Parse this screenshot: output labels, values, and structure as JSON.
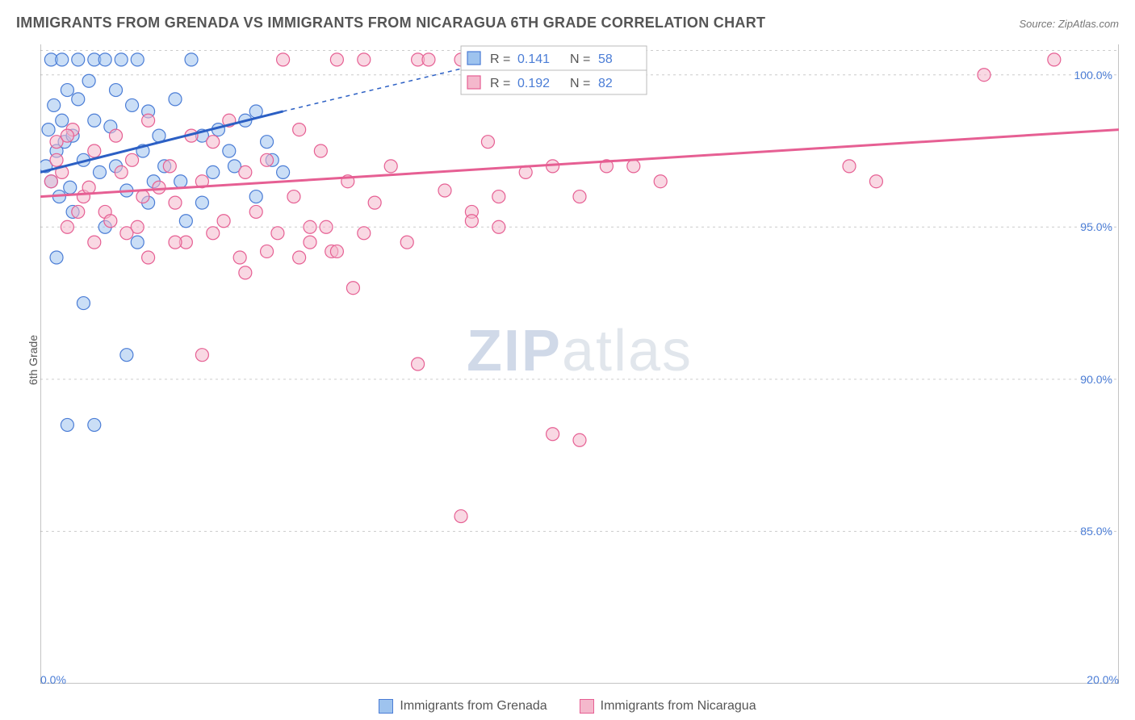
{
  "title": "IMMIGRANTS FROM GRENADA VS IMMIGRANTS FROM NICARAGUA 6TH GRADE CORRELATION CHART",
  "source": "Source: ZipAtlas.com",
  "y_axis_label": "6th Grade",
  "watermark_zip": "ZIP",
  "watermark_atlas": "atlas",
  "chart": {
    "type": "scatter",
    "background_color": "#ffffff",
    "grid_color": "#cccccc",
    "axis_color": "#888888",
    "xlim": [
      0,
      20
    ],
    "ylim": [
      80,
      101
    ],
    "x_ticks": [
      0,
      2.5,
      5,
      7.5,
      10,
      12.5,
      15,
      17.5,
      20
    ],
    "x_tick_labels_shown": {
      "0": "0.0%",
      "20": "20.0%"
    },
    "y_ticks": [
      85,
      90,
      95,
      100
    ],
    "y_tick_labels": {
      "85": "85.0%",
      "90": "90.0%",
      "95": "95.0%",
      "100": "100.0%"
    },
    "marker_radius": 8,
    "marker_opacity": 0.55,
    "trend_line_width": 3,
    "series": [
      {
        "name": "Immigrants from Grenada",
        "color_fill": "#9ec3ee",
        "color_stroke": "#4b7dd6",
        "trend_color": "#2b5fc4",
        "R": "0.141",
        "N": "58",
        "trend": {
          "x1": 0,
          "y1": 96.8,
          "x2": 4.5,
          "y2": 98.8,
          "x2_dash": 7.8,
          "y2_dash": 100.2
        },
        "points": [
          [
            0.1,
            97.0
          ],
          [
            0.15,
            98.2
          ],
          [
            0.2,
            96.5
          ],
          [
            0.25,
            99.0
          ],
          [
            0.3,
            97.5
          ],
          [
            0.35,
            96.0
          ],
          [
            0.4,
            98.5
          ],
          [
            0.45,
            97.8
          ],
          [
            0.5,
            99.5
          ],
          [
            0.55,
            96.3
          ],
          [
            0.6,
            98.0
          ],
          [
            0.7,
            100.5
          ],
          [
            0.8,
            97.2
          ],
          [
            0.9,
            99.8
          ],
          [
            1.0,
            100.5
          ],
          [
            1.1,
            96.8
          ],
          [
            1.2,
            100.5
          ],
          [
            1.3,
            98.3
          ],
          [
            1.4,
            97.0
          ],
          [
            1.5,
            100.5
          ],
          [
            1.6,
            96.2
          ],
          [
            1.7,
            99.0
          ],
          [
            1.8,
            100.5
          ],
          [
            1.9,
            97.5
          ],
          [
            2.0,
            98.8
          ],
          [
            2.1,
            96.5
          ],
          [
            2.3,
            97.0
          ],
          [
            2.5,
            99.2
          ],
          [
            2.7,
            95.2
          ],
          [
            2.8,
            100.5
          ],
          [
            3.0,
            98.0
          ],
          [
            3.2,
            96.8
          ],
          [
            3.5,
            97.5
          ],
          [
            3.8,
            98.5
          ],
          [
            4.0,
            96.0
          ],
          [
            4.2,
            97.8
          ],
          [
            0.5,
            88.5
          ],
          [
            1.0,
            88.5
          ],
          [
            0.8,
            92.5
          ],
          [
            1.6,
            90.8
          ],
          [
            0.3,
            94.0
          ],
          [
            0.6,
            95.5
          ],
          [
            1.2,
            95.0
          ],
          [
            1.8,
            94.5
          ],
          [
            2.0,
            95.8
          ],
          [
            0.2,
            100.5
          ],
          [
            0.4,
            100.5
          ],
          [
            0.7,
            99.2
          ],
          [
            1.0,
            98.5
          ],
          [
            1.4,
            99.5
          ],
          [
            2.2,
            98.0
          ],
          [
            2.6,
            96.5
          ],
          [
            3.0,
            95.8
          ],
          [
            3.3,
            98.2
          ],
          [
            3.6,
            97.0
          ],
          [
            4.0,
            98.8
          ],
          [
            4.3,
            97.2
          ],
          [
            4.5,
            96.8
          ]
        ]
      },
      {
        "name": "Immigrants from Nicaragua",
        "color_fill": "#f4b8cc",
        "color_stroke": "#e65f93",
        "trend_color": "#e65f93",
        "R": "0.192",
        "N": "82",
        "trend": {
          "x1": 0,
          "y1": 96.0,
          "x2": 20,
          "y2": 98.2
        },
        "points": [
          [
            0.2,
            96.5
          ],
          [
            0.3,
            97.8
          ],
          [
            0.5,
            95.0
          ],
          [
            0.6,
            98.2
          ],
          [
            0.8,
            96.0
          ],
          [
            1.0,
            97.5
          ],
          [
            1.2,
            95.5
          ],
          [
            1.4,
            98.0
          ],
          [
            1.5,
            96.8
          ],
          [
            1.7,
            97.2
          ],
          [
            1.8,
            95.0
          ],
          [
            2.0,
            98.5
          ],
          [
            2.2,
            96.3
          ],
          [
            2.4,
            97.0
          ],
          [
            2.5,
            95.8
          ],
          [
            2.7,
            94.5
          ],
          [
            2.8,
            98.0
          ],
          [
            3.0,
            96.5
          ],
          [
            3.2,
            97.8
          ],
          [
            3.4,
            95.2
          ],
          [
            3.5,
            98.5
          ],
          [
            3.7,
            94.0
          ],
          [
            3.8,
            96.8
          ],
          [
            4.0,
            95.5
          ],
          [
            4.2,
            97.2
          ],
          [
            4.4,
            94.8
          ],
          [
            4.5,
            100.5
          ],
          [
            4.7,
            96.0
          ],
          [
            4.8,
            98.2
          ],
          [
            5.0,
            95.0
          ],
          [
            5.2,
            97.5
          ],
          [
            5.4,
            94.2
          ],
          [
            5.5,
            100.5
          ],
          [
            5.7,
            96.5
          ],
          [
            5.8,
            93.0
          ],
          [
            6.0,
            100.5
          ],
          [
            6.2,
            95.8
          ],
          [
            6.5,
            97.0
          ],
          [
            6.8,
            94.5
          ],
          [
            7.0,
            100.5
          ],
          [
            7.2,
            100.5
          ],
          [
            7.5,
            96.2
          ],
          [
            7.8,
            100.5
          ],
          [
            8.0,
            95.5
          ],
          [
            8.3,
            97.8
          ],
          [
            8.5,
            95.0
          ],
          [
            9.0,
            96.8
          ],
          [
            9.5,
            97.0
          ],
          [
            10.0,
            96.0
          ],
          [
            10.5,
            97.0
          ],
          [
            11.0,
            97.0
          ],
          [
            11.5,
            96.5
          ],
          [
            15.0,
            97.0
          ],
          [
            15.5,
            96.5
          ],
          [
            17.5,
            100.0
          ],
          [
            18.8,
            100.5
          ],
          [
            2.0,
            94.0
          ],
          [
            2.5,
            94.5
          ],
          [
            3.0,
            90.8
          ],
          [
            3.2,
            94.8
          ],
          [
            3.8,
            93.5
          ],
          [
            4.2,
            94.2
          ],
          [
            4.8,
            94.0
          ],
          [
            5.0,
            94.5
          ],
          [
            5.3,
            95.0
          ],
          [
            5.5,
            94.2
          ],
          [
            6.0,
            94.8
          ],
          [
            7.0,
            90.5
          ],
          [
            7.8,
            85.5
          ],
          [
            8.0,
            95.2
          ],
          [
            8.5,
            96.0
          ],
          [
            9.5,
            88.2
          ],
          [
            10.0,
            88.0
          ],
          [
            1.0,
            94.5
          ],
          [
            1.3,
            95.2
          ],
          [
            1.6,
            94.8
          ],
          [
            1.9,
            96.0
          ],
          [
            0.4,
            96.8
          ],
          [
            0.7,
            95.5
          ],
          [
            0.3,
            97.2
          ],
          [
            0.5,
            98.0
          ],
          [
            0.9,
            96.3
          ]
        ]
      }
    ]
  },
  "legend": [
    {
      "label": "Immigrants from Grenada",
      "fill": "#9ec3ee",
      "stroke": "#4b7dd6"
    },
    {
      "label": "Immigrants from Nicaragua",
      "fill": "#f4b8cc",
      "stroke": "#e65f93"
    }
  ],
  "stats_box": {
    "rows": [
      {
        "swatch_fill": "#9ec3ee",
        "swatch_stroke": "#4b7dd6",
        "r_label": "R =",
        "r_val": "0.141",
        "n_label": "N =",
        "n_val": "58"
      },
      {
        "swatch_fill": "#f4b8cc",
        "swatch_stroke": "#e65f93",
        "r_label": "R =",
        "r_val": "0.192",
        "n_label": "N =",
        "n_val": "82"
      }
    ]
  }
}
